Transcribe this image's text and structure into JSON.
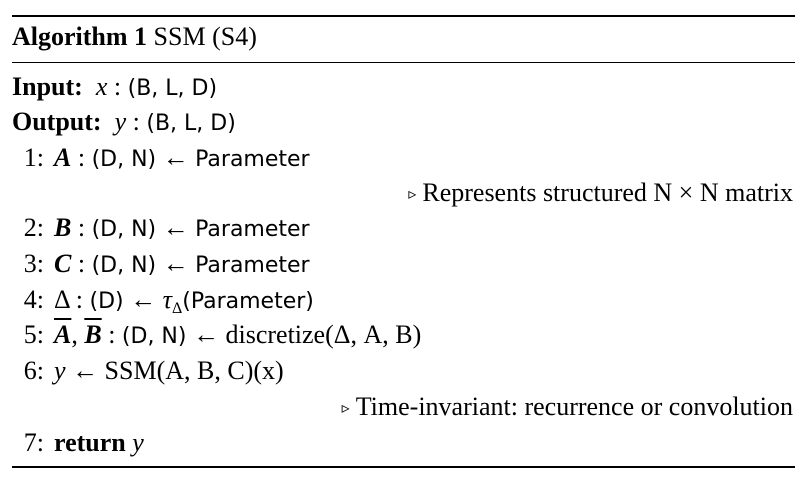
{
  "algorithm": {
    "label": "Algorithm 1",
    "name": "SSM (S4)"
  },
  "io": {
    "input_label": "Input:",
    "input_var": "x",
    "input_shape": "(B, L, D)",
    "output_label": "Output:",
    "output_var": "y",
    "output_shape": "(B, L, D)"
  },
  "steps": [
    {
      "num": "1:",
      "var": "A",
      "shape": "(D, N)",
      "rhs": "Parameter",
      "comment": "Represents structured N × N matrix"
    },
    {
      "num": "2:",
      "var": "B",
      "shape": "(D, N)",
      "rhs": "Parameter"
    },
    {
      "num": "3:",
      "var": "C",
      "shape": "(D, N)",
      "rhs": "Parameter"
    },
    {
      "num": "4:",
      "var": "Δ",
      "shape": "(D)",
      "rhs_fn": "τ",
      "rhs_sub": "Δ",
      "rhs_arg": "(Parameter)"
    },
    {
      "num": "5:",
      "var1": "A",
      "var2": "B",
      "shape": "(D, N)",
      "rhs": "discretize(Δ, A, B)"
    },
    {
      "num": "6:",
      "lhs": "y",
      "rhs": "SSM(A, B, C)(x)",
      "comment": "Time-invariant: recurrence or convolution"
    },
    {
      "num": "7:",
      "keyword": "return",
      "var": "y"
    }
  ],
  "symbols": {
    "colon": ":",
    "arrow": "←",
    "comment_marker": "▹"
  }
}
